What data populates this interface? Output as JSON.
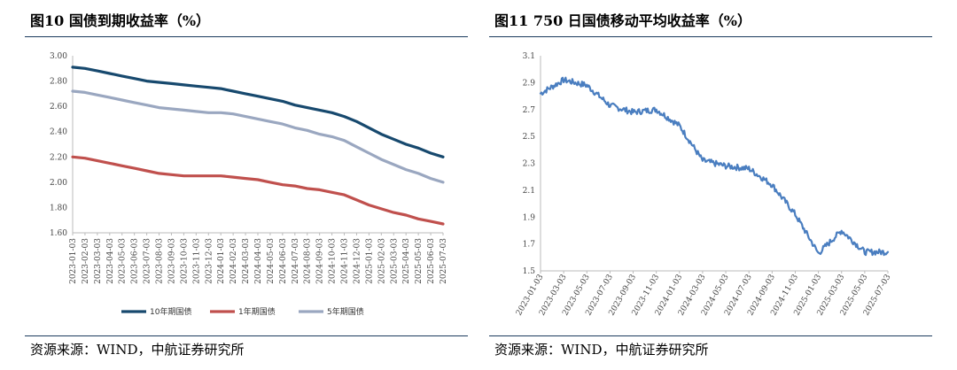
{
  "left_panel": {
    "title": "图10  国债到期收益率（%）",
    "source": "资源来源：WIND，中航证券研究所"
  },
  "right_panel": {
    "title": "图11  750 日国债移动平均收益率（%）",
    "source": "资源来源：WIND，中航证券研究所"
  },
  "colors": {
    "rule": "#1b3a5e",
    "series_10y": "#17496e",
    "series_1y": "#c0504d",
    "series_5y": "#9aa7c0",
    "series_ma": "#4a7ec0"
  },
  "chart_data": [
    {
      "type": "line",
      "title": "",
      "xlabel": "",
      "ylabel": "",
      "ylim": [
        1.6,
        3.0
      ],
      "yticks": [
        "3.00",
        "2.80",
        "2.60",
        "2.40",
        "2.20",
        "2.00",
        "1.80",
        "1.60"
      ],
      "grid": false,
      "legend": "bottom",
      "x": [
        "2023-01-03",
        "2023-02-03",
        "2023-03-03",
        "2023-04-03",
        "2023-05-03",
        "2023-06-03",
        "2023-07-03",
        "2023-08-03",
        "2023-09-03",
        "2023-10-03",
        "2023-11-03",
        "2023-12-03",
        "2024-01-03",
        "2024-02-03",
        "2024-03-03",
        "2024-04-03",
        "2024-05-03",
        "2024-06-03",
        "2024-07-03",
        "2024-08-03",
        "2024-09-03",
        "2024-10-03",
        "2024-11-03",
        "2024-12-03",
        "2025-01-03",
        "2025-02-03",
        "2025-03-03",
        "2025-04-03",
        "2025-05-03",
        "2025-06-03",
        "2025-07-03"
      ],
      "series": [
        {
          "name": "10年期国债",
          "color": "#17496e",
          "values": [
            2.91,
            2.9,
            2.88,
            2.86,
            2.84,
            2.82,
            2.8,
            2.79,
            2.78,
            2.77,
            2.76,
            2.75,
            2.74,
            2.72,
            2.7,
            2.68,
            2.66,
            2.64,
            2.61,
            2.59,
            2.57,
            2.55,
            2.52,
            2.48,
            2.43,
            2.38,
            2.34,
            2.3,
            2.27,
            2.23,
            2.2
          ]
        },
        {
          "name": "1年期国债",
          "color": "#c0504d",
          "values": [
            2.2,
            2.19,
            2.17,
            2.15,
            2.13,
            2.11,
            2.09,
            2.07,
            2.06,
            2.05,
            2.05,
            2.05,
            2.05,
            2.04,
            2.03,
            2.02,
            2.0,
            1.98,
            1.97,
            1.95,
            1.94,
            1.92,
            1.9,
            1.86,
            1.82,
            1.79,
            1.76,
            1.74,
            1.71,
            1.69,
            1.67
          ]
        },
        {
          "name": "5年期国债",
          "color": "#9aa7c0",
          "values": [
            2.72,
            2.71,
            2.69,
            2.67,
            2.65,
            2.63,
            2.61,
            2.59,
            2.58,
            2.57,
            2.56,
            2.55,
            2.55,
            2.54,
            2.52,
            2.5,
            2.48,
            2.46,
            2.43,
            2.41,
            2.38,
            2.36,
            2.33,
            2.28,
            2.23,
            2.18,
            2.14,
            2.1,
            2.07,
            2.03,
            2.0
          ]
        }
      ]
    },
    {
      "type": "line",
      "title": "",
      "xlabel": "",
      "ylabel": "",
      "ylim": [
        1.5,
        3.1
      ],
      "yticks": [
        "3.1",
        "2.9",
        "2.7",
        "2.5",
        "2.3",
        "2.1",
        "1.9",
        "1.7",
        "1.5"
      ],
      "grid": false,
      "legend": "none",
      "x": [
        "2023-01-03",
        "2023-03-03",
        "2023-05-03",
        "2023-07-03",
        "2023-09-03",
        "2023-11-03",
        "2024-01-03",
        "2024-03-03",
        "2024-05-03",
        "2024-07-03",
        "2024-09-03",
        "2024-11-03",
        "2025-01-03",
        "2025-03-03",
        "2025-05-03",
        "2025-07-03"
      ],
      "series": [
        {
          "color": "#4a7ec0",
          "values": [
            2.82,
            2.92,
            2.88,
            2.73,
            2.68,
            2.7,
            2.58,
            2.32,
            2.28,
            2.26,
            2.14,
            1.92,
            1.63,
            1.8,
            1.64,
            1.64
          ]
        }
      ]
    }
  ]
}
